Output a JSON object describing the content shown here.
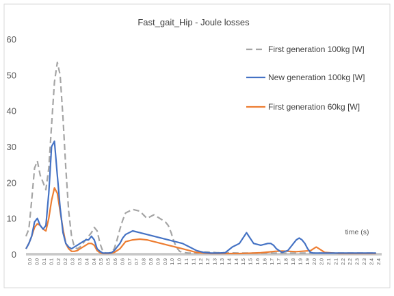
{
  "chart_data": {
    "type": "line",
    "title": "Fast_gait_Hip - Joule losses",
    "xlabel": "time (s)",
    "ylabel": "",
    "xlim": [
      0,
      2.5
    ],
    "ylim": [
      0,
      60
    ],
    "yticks": [
      0,
      10,
      20,
      30,
      40,
      50,
      60
    ],
    "xticks": [
      "0.0",
      "0.0",
      "0.1",
      "0.1",
      "0.2",
      "0.2",
      "0.3",
      "0.3",
      "0.4",
      "0.4",
      "0.5",
      "0.5",
      "0.6",
      "0.6",
      "0.7",
      "0.7",
      "0.8",
      "0.8",
      "0.9",
      "0.9",
      "1.0",
      "1.0",
      "1.1",
      "1.1",
      "1.2",
      "1.2",
      "1.3",
      "1.3",
      "1.4",
      "1.4",
      "1.5",
      "1.5",
      "1.6",
      "1.6",
      "1.7",
      "1.7",
      "1.8",
      "1.8",
      "1.9",
      "1.9",
      "2.0",
      "2.0",
      "2.1",
      "2.1",
      "2.2",
      "2.2",
      "2.3",
      "2.3",
      "2.4",
      "2.4"
    ],
    "grid": false,
    "legend_position": "top-right",
    "series": [
      {
        "name": "First generation  100kg [W]",
        "color": "#a5a5a5",
        "style": "dashed",
        "x": [
          0.0,
          0.02,
          0.04,
          0.06,
          0.08,
          0.1,
          0.12,
          0.14,
          0.16,
          0.18,
          0.2,
          0.22,
          0.24,
          0.26,
          0.28,
          0.3,
          0.32,
          0.34,
          0.36,
          0.38,
          0.4,
          0.42,
          0.44,
          0.46,
          0.48,
          0.5,
          0.52,
          0.54,
          0.56,
          0.58,
          0.6,
          0.62,
          0.64,
          0.66,
          0.68,
          0.7,
          0.75,
          0.8,
          0.85,
          0.9,
          0.92,
          0.94,
          0.96,
          0.98,
          1.0,
          1.02,
          1.04,
          1.06,
          1.08,
          1.1,
          1.12,
          1.14,
          1.16,
          1.18,
          1.2,
          1.22,
          1.24,
          1.26,
          1.28,
          1.3,
          1.32,
          1.34,
          1.36,
          1.4,
          1.5,
          1.6,
          1.7,
          1.8,
          1.9,
          2.0,
          2.1,
          2.2,
          2.3,
          2.4,
          2.46
        ],
        "values": [
          5,
          7,
          15,
          24,
          26,
          22,
          20,
          18,
          24,
          36,
          48,
          53.5,
          50,
          38,
          24,
          12,
          5,
          2,
          1.5,
          2,
          3,
          4,
          5,
          6,
          7.5,
          6.5,
          3,
          0.8,
          0.3,
          0.3,
          0.5,
          1.5,
          4,
          7,
          9.5,
          11.5,
          12.5,
          12,
          10,
          11,
          10.5,
          10,
          9.5,
          9,
          8,
          6,
          3.5,
          1.8,
          0.8,
          0.5,
          0.4,
          0.3,
          0.3,
          0.3,
          0.3,
          0.4,
          0.5,
          0.6,
          0.6,
          0.5,
          0.5,
          0.4,
          0.4,
          0.4,
          0.3,
          0.3,
          0.3,
          0.3,
          0.3,
          0.3,
          0.3,
          0.3,
          0.3,
          0.3,
          0.3
        ]
      },
      {
        "name": "New generation 100kg [W]",
        "color": "#4472c4",
        "style": "solid",
        "x": [
          0.0,
          0.02,
          0.04,
          0.06,
          0.08,
          0.1,
          0.12,
          0.14,
          0.16,
          0.18,
          0.2,
          0.22,
          0.24,
          0.26,
          0.28,
          0.3,
          0.32,
          0.34,
          0.36,
          0.38,
          0.4,
          0.42,
          0.44,
          0.46,
          0.48,
          0.5,
          0.52,
          0.54,
          0.56,
          0.58,
          0.6,
          0.62,
          0.64,
          0.66,
          0.68,
          0.7,
          0.75,
          0.8,
          0.85,
          0.9,
          0.95,
          1.0,
          1.05,
          1.1,
          1.15,
          1.2,
          1.25,
          1.3,
          1.35,
          1.4,
          1.45,
          1.5,
          1.55,
          1.6,
          1.65,
          1.7,
          1.72,
          1.74,
          1.76,
          1.78,
          1.8,
          1.82,
          1.84,
          1.86,
          1.88,
          1.9,
          1.92,
          1.94,
          1.96,
          1.98,
          2.0,
          2.02,
          2.04,
          2.06,
          2.1,
          2.2,
          2.3,
          2.4,
          2.46
        ],
        "values": [
          1.5,
          3,
          5,
          9,
          10,
          8,
          7,
          8,
          17,
          30,
          31.5,
          22,
          13,
          6,
          3,
          2,
          1.5,
          2,
          2.5,
          3,
          3.5,
          4,
          4,
          5,
          4,
          1.5,
          0.8,
          0.3,
          0.3,
          0.3,
          0.4,
          1,
          2,
          3,
          4.5,
          5.5,
          6.5,
          6,
          5.5,
          5,
          4.5,
          4,
          3.5,
          3,
          2,
          1,
          0.5,
          0.3,
          0.3,
          0.4,
          2,
          3,
          6,
          3,
          2.5,
          3,
          3,
          2.5,
          1.5,
          1,
          0.5,
          0.8,
          1,
          2,
          3,
          4,
          4.5,
          4,
          3,
          1.5,
          0.5,
          0.3,
          0.3,
          0.3,
          0.3,
          0.3,
          0.3,
          0.3,
          0.3
        ]
      },
      {
        "name": "First generation 60kg [W]",
        "color": "#ed7d31",
        "style": "solid",
        "x": [
          0.0,
          0.02,
          0.04,
          0.06,
          0.08,
          0.1,
          0.12,
          0.14,
          0.16,
          0.18,
          0.2,
          0.22,
          0.24,
          0.26,
          0.28,
          0.3,
          0.32,
          0.34,
          0.36,
          0.38,
          0.4,
          0.42,
          0.44,
          0.46,
          0.48,
          0.5,
          0.52,
          0.54,
          0.56,
          0.58,
          0.6,
          0.62,
          0.64,
          0.66,
          0.68,
          0.7,
          0.75,
          0.8,
          0.85,
          0.9,
          0.95,
          1.0,
          1.05,
          1.1,
          1.15,
          1.2,
          1.25,
          1.3,
          1.35,
          1.4,
          1.5,
          1.6,
          1.65,
          1.7,
          1.75,
          1.8,
          1.9,
          2.0,
          2.02,
          2.04,
          2.06,
          2.1,
          2.2,
          2.3,
          2.4,
          2.46
        ],
        "values": [
          1.5,
          3,
          5,
          7.5,
          8.5,
          8,
          7,
          6.5,
          10,
          15,
          18.5,
          17,
          12,
          7,
          3,
          1.5,
          0.8,
          0.8,
          1,
          1.5,
          2,
          2.5,
          3,
          3,
          2.5,
          1,
          0.4,
          0.2,
          0.2,
          0.2,
          0.3,
          0.5,
          1,
          1.5,
          2.5,
          3.5,
          4,
          4.2,
          4,
          3.5,
          3,
          2.5,
          2,
          1.5,
          1,
          0.5,
          0.3,
          0.2,
          0.2,
          0.2,
          0.2,
          0.3,
          0.4,
          0.6,
          0.8,
          0.9,
          0.7,
          1,
          1.5,
          2,
          1.5,
          0.5,
          0.2,
          0.2,
          0.2,
          0.2
        ]
      }
    ]
  }
}
